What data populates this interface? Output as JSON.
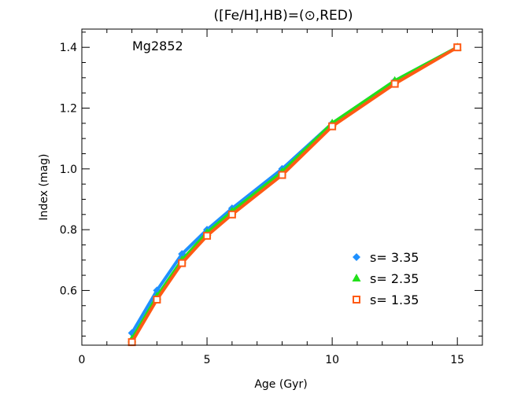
{
  "chart_data": {
    "type": "line",
    "title": "([Fe/H],HB)=(⊙,RED)",
    "annotation": "Mg2852",
    "xlabel": "Age (Gyr)",
    "ylabel": "Index (mag)",
    "xlim": [
      0,
      16
    ],
    "ylim": [
      0.42,
      1.46
    ],
    "xticks": [
      0,
      5,
      10,
      15
    ],
    "xtick_labels": [
      "0",
      "5",
      "10",
      "15"
    ],
    "yticks": [
      0.6,
      0.8,
      1.0,
      1.2,
      1.4
    ],
    "ytick_labels": [
      "0.6",
      "0.8",
      "1.0",
      "1.2",
      "1.4"
    ],
    "grid": false,
    "legend_position": "lower-right",
    "x": [
      2,
      3,
      4,
      5,
      6,
      8,
      10,
      12.5,
      15
    ],
    "series": [
      {
        "name": "s= 3.35",
        "color": "#1e90ff",
        "marker": "diamond",
        "values": [
          0.46,
          0.6,
          0.72,
          0.8,
          0.87,
          1.0,
          1.15,
          1.29,
          1.4
        ]
      },
      {
        "name": "s= 2.35",
        "color": "#22e01a",
        "marker": "triangle",
        "values": [
          0.44,
          0.58,
          0.7,
          0.79,
          0.86,
          0.99,
          1.15,
          1.29,
          1.4
        ]
      },
      {
        "name": "s= 1.35",
        "color": "#ff5a14",
        "marker": "square",
        "values": [
          0.43,
          0.57,
          0.69,
          0.78,
          0.85,
          0.98,
          1.14,
          1.28,
          1.4
        ]
      }
    ]
  }
}
